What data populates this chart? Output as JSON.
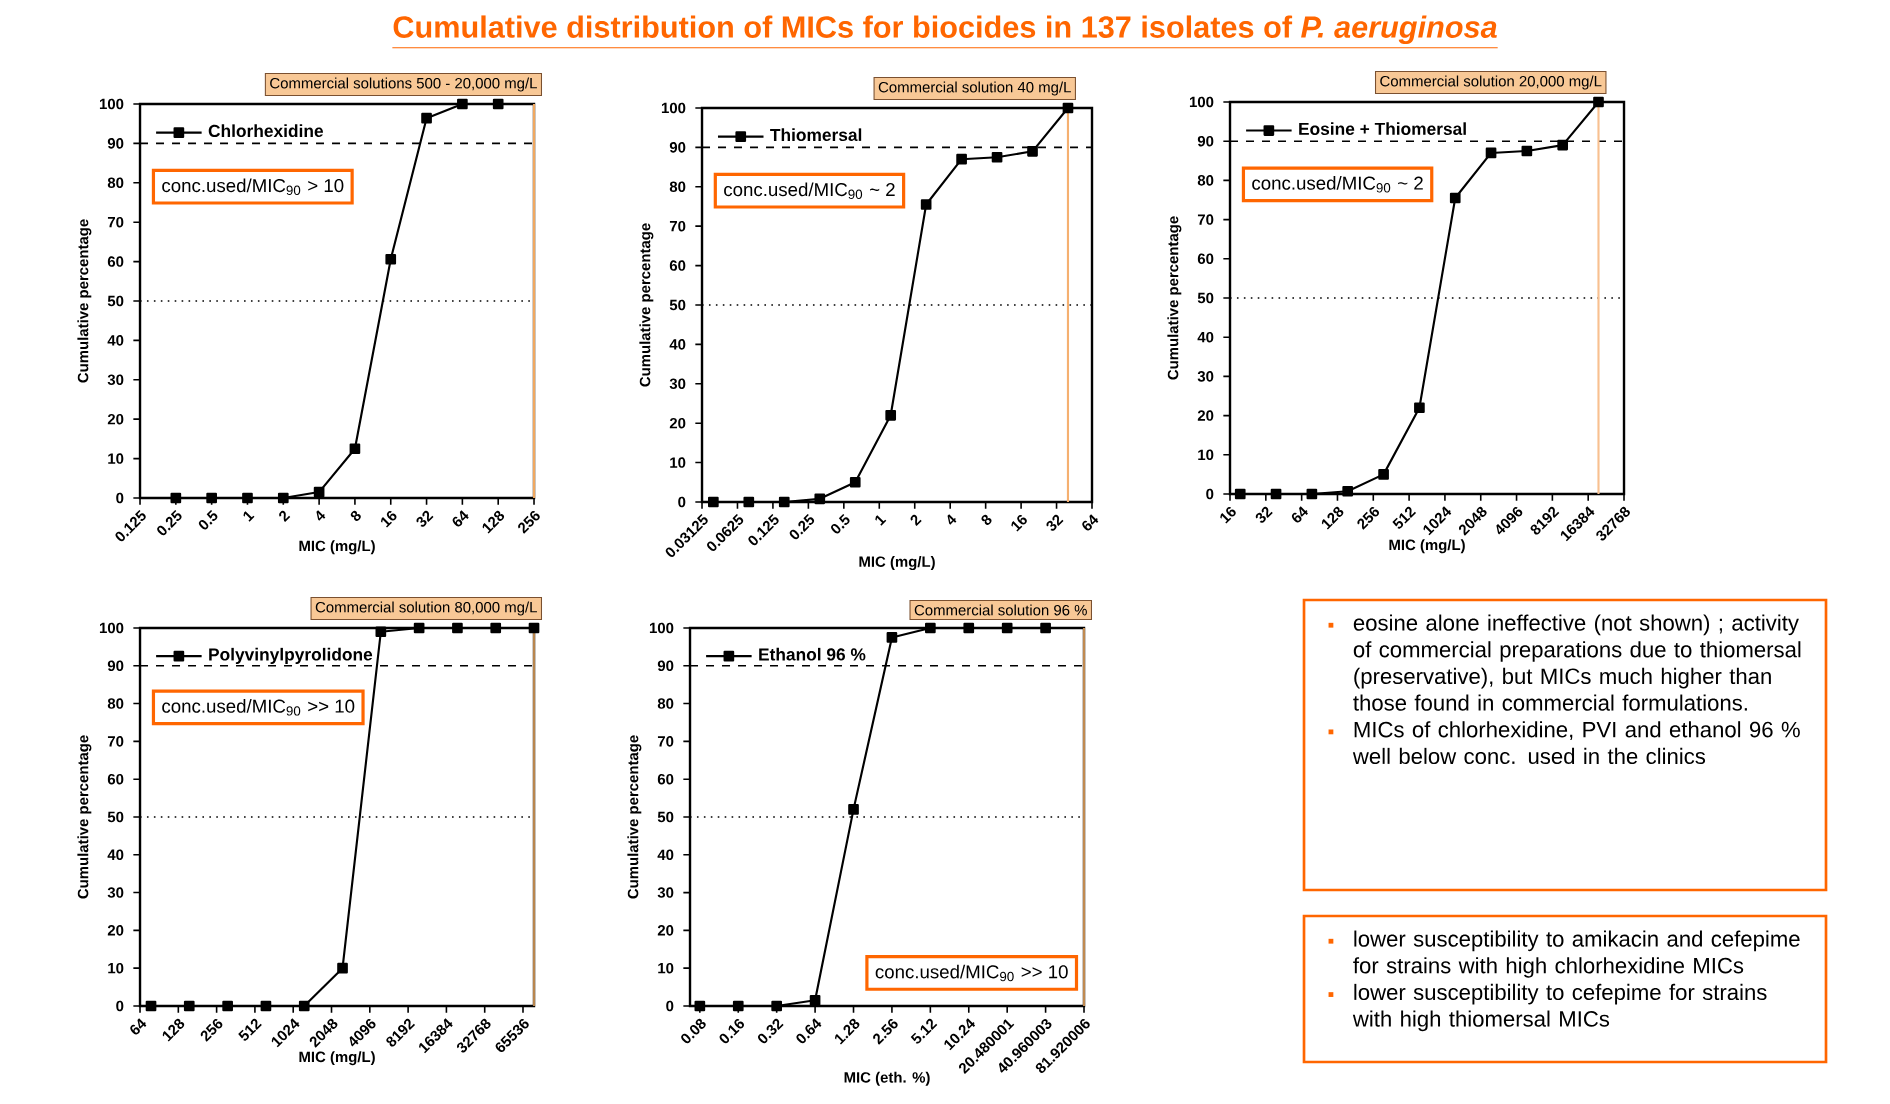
{
  "chart_data": [
    {
      "type": "line",
      "title": "Cumulative distribution of MICs for biocides in 137 isolates of *P. aeruginosa*",
      "xlabel": "MIC (mg/L)",
      "ylabel": "Cumulative percentage",
      "log": "x",
      "marker": "square",
      "legend": "top left",
      "xlim": [
        0.125,
        256
      ],
      "ylim": [
        0,
        100
      ],
      "xticks": [
        0.125,
        0.25,
        0.5,
        1,
        2,
        4,
        8,
        16,
        32,
        64,
        128,
        256
      ],
      "yticks": [
        0,
        10,
        20,
        30,
        40,
        50,
        60,
        70,
        80,
        90,
        100
      ],
      "series": [
        {
          "name": "Chlorhexidine",
          "color": "#000000",
          "x": [
            0.25,
            0.5,
            1,
            2,
            4,
            8,
            16,
            32,
            64,
            128
          ],
          "values": [
            0,
            0,
            0,
            0,
            1.5,
            12.5,
            60.6,
            96.4,
            100,
            100
          ]
        }
      ],
      "ref_lines": [
        {
          "axis": "y",
          "value": 90,
          "line_style": "dashed"
        },
        {
          "axis": "y",
          "value": 50,
          "line_style": "dotted"
        },
        {
          "axis": "x",
          "value": 256,
          "label": "Commercial solutions 500 - 20,000 mg/L",
          "color": "#f0a860"
        }
      ],
      "annotations": [
        "conc.used/MIC$_{90}$  > 10"
      ]
    },
    {
      "type": "line",
      "xlabel": "MIC (mg/L)",
      "ylabel": "Cumulative percentage",
      "log": "x",
      "marker": "square",
      "legend": "top left",
      "xlim": [
        0.03125,
        64
      ],
      "ylim": [
        0,
        100
      ],
      "xticks": [
        0.03125,
        0.0625,
        0.125,
        0.25,
        0.5,
        1,
        2,
        4,
        8,
        16,
        32,
        64
      ],
      "yticks": [
        0,
        10,
        20,
        30,
        40,
        50,
        60,
        70,
        80,
        90,
        100
      ],
      "series": [
        {
          "name": "Thiomersal",
          "color": "#000000",
          "x": [
            0.039,
            0.078,
            0.156,
            0.3125,
            0.625,
            1.25,
            2.5,
            5,
            10,
            20,
            40
          ],
          "values": [
            0,
            0,
            0,
            0.8,
            5,
            22,
            75.5,
            87,
            87.5,
            89,
            100
          ]
        }
      ],
      "ref_lines": [
        {
          "axis": "y",
          "value": 90,
          "line_style": "dashed"
        },
        {
          "axis": "y",
          "value": 50,
          "line_style": "dotted"
        },
        {
          "axis": "x",
          "value": 40,
          "label": "Commercial solution 40 mg/L",
          "color": "#f5b070"
        }
      ],
      "annotations": [
        "conc.used/MIC$_{90}$  ~ 2"
      ]
    },
    {
      "type": "line",
      "xlabel": "MIC (mg/L)",
      "ylabel": "Cumulative percentage",
      "log": "x",
      "marker": "square",
      "legend": "top left",
      "xlim": [
        16,
        32768
      ],
      "ylim": [
        0,
        100
      ],
      "xticks": [
        16,
        32,
        64,
        128,
        256,
        512,
        1024,
        2048,
        4096,
        8192,
        16384,
        32768
      ],
      "yticks": [
        0,
        10,
        20,
        30,
        40,
        50,
        60,
        70,
        80,
        90,
        100
      ],
      "series": [
        {
          "name": "Eosine + Thiomersal",
          "color": "#000000",
          "x": [
            19.5,
            39,
            78,
            156,
            312.5,
            625,
            1250,
            2500,
            5000,
            10000,
            20000
          ],
          "values": [
            0,
            0,
            0,
            0.7,
            5,
            22,
            75.5,
            87,
            87.5,
            89,
            100
          ]
        }
      ],
      "ref_lines": [
        {
          "axis": "y",
          "value": 90,
          "line_style": "dashed"
        },
        {
          "axis": "y",
          "value": 50,
          "line_style": "dotted"
        },
        {
          "axis": "x",
          "value": 20000,
          "label": "Commercial solution 20,000 mg/L",
          "color": "#f8c090"
        }
      ],
      "annotations": [
        "conc.used/MIC$_{90}$ ~ 2"
      ]
    },
    {
      "type": "line",
      "xlabel": "MIC (mg/L)",
      "ylabel": "Cumulative percentage",
      "log": "x",
      "marker": "square",
      "legend": "top left",
      "xlim": [
        64,
        80000
      ],
      "ylim": [
        0,
        100
      ],
      "xticks": [
        64,
        128,
        256,
        512,
        1024,
        2048,
        4096,
        8192,
        16384,
        32768,
        65536
      ],
      "yticks": [
        0,
        10,
        20,
        30,
        40,
        50,
        60,
        70,
        80,
        90,
        100
      ],
      "series": [
        {
          "name": "Polyvinylpyrolidone",
          "color": "#000000",
          "x": [
            78.1,
            156,
            312.5,
            625,
            1250,
            2500,
            5000,
            10000,
            20000,
            40000,
            80000
          ],
          "values": [
            0,
            0,
            0,
            0,
            0,
            10,
            99,
            100,
            100,
            100,
            100
          ]
        }
      ],
      "ref_lines": [
        {
          "axis": "y",
          "value": 90,
          "line_style": "dashed"
        },
        {
          "axis": "y",
          "value": 50,
          "line_style": "dotted"
        },
        {
          "axis": "x",
          "value": 80000,
          "label": "Commercial solution 80,000 mg/L",
          "color": "#b8864e"
        }
      ],
      "annotations": [
        "conc.used/MIC$_{90}$ >> 10"
      ]
    },
    {
      "type": "line",
      "xlabel": "MIC (eth. %)",
      "ylabel": "Cumulative percentage",
      "log": "x",
      "marker": "square",
      "legend": "top left",
      "xlim": [
        0.067,
        81.920006
      ],
      "ylim": [
        0,
        100
      ],
      "xticks": [
        0.08,
        0.16,
        0.32,
        0.64,
        1.28,
        2.56,
        5.12,
        10.24,
        20.480001,
        40.960003,
        81.920006
      ],
      "yticks": [
        0,
        10,
        20,
        30,
        40,
        50,
        60,
        70,
        80,
        90,
        100
      ],
      "series": [
        {
          "name": "Ethanol 96 %",
          "color": "#000000",
          "x": [
            0.08,
            0.16,
            0.32,
            0.64,
            1.28,
            2.56,
            5.12,
            10.24,
            20.480001,
            40.960003
          ],
          "values": [
            0,
            0,
            0,
            1.5,
            52,
            97.5,
            100,
            100,
            100,
            100
          ]
        }
      ],
      "ref_lines": [
        {
          "axis": "y",
          "value": 90,
          "line_style": "dashed"
        },
        {
          "axis": "y",
          "value": 50,
          "line_style": "dotted"
        },
        {
          "axis": "x",
          "value": 81.920006,
          "label": "Commercial solution 96 %",
          "color": "#c08a50"
        }
      ],
      "annotations": [
        "conc.used/MIC$_{90}$ >> 10"
      ]
    },
    {
      "type": "other",
      "annotations": [
        "eosine alone ineffective (not shown) ; activity of  commercial preparations due to thiomersal (preservative), but MICs much higher than  those found in commercial formulations.",
        "MICs of chlorhexidine, PVI and ethanol 96 % well below conc. used in the clinics"
      ]
    },
    {
      "type": "other",
      "annotations": [
        "lower susceptibility to amikacin and cefepime for strains with high chlorhexidine MICs",
        "lower susceptibility to cefepime for strains with high thiomersal MICs"
      ]
    }
  ]
}
